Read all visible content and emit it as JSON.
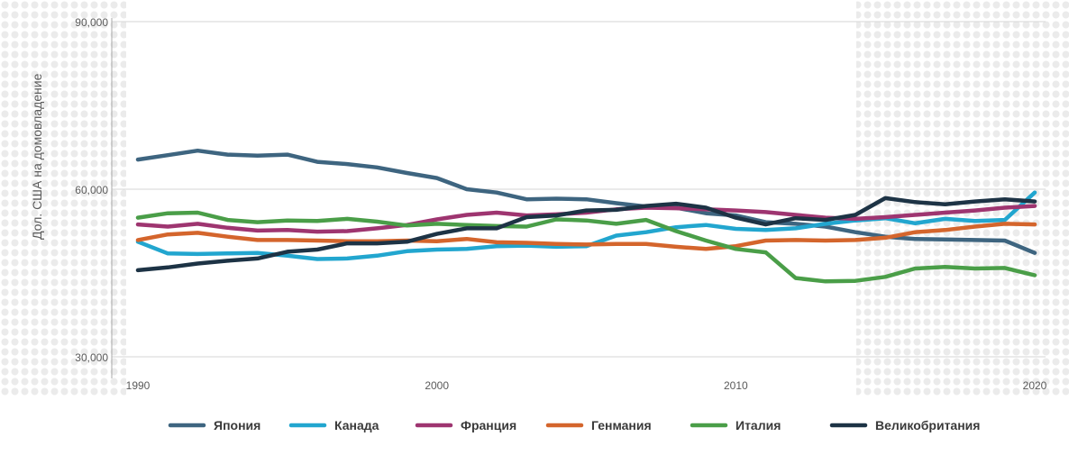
{
  "chart_data": {
    "type": "line",
    "ylabel": "Дол. США на домовладение",
    "ylim": [
      30000,
      90000
    ],
    "xlim": [
      1990,
      2020
    ],
    "y_ticks": [
      30000,
      60000,
      90000
    ],
    "y_tick_labels": [
      "30,000",
      "60,000",
      "90,000"
    ],
    "x_ticks": [
      1990,
      2000,
      2010,
      2020
    ],
    "x_tick_labels": [
      "1990",
      "2000",
      "2010",
      "2020"
    ],
    "grid": "horizontal",
    "legend_position": "bottom",
    "x": [
      1990,
      1991,
      1992,
      1993,
      1994,
      1995,
      1996,
      1997,
      1998,
      1999,
      2000,
      2001,
      2002,
      2003,
      2004,
      2005,
      2006,
      2007,
      2008,
      2009,
      2010,
      2011,
      2012,
      2013,
      2014,
      2015,
      2016,
      2017,
      2018,
      2019,
      2020
    ],
    "series": [
      {
        "name": "Япония",
        "color": "#3e6580",
        "values": [
          65300,
          66100,
          66900,
          66200,
          66000,
          66200,
          64900,
          64500,
          63900,
          62900,
          62000,
          60000,
          59400,
          58200,
          58300,
          58200,
          57500,
          56900,
          56700,
          55700,
          55300,
          54100,
          53800,
          53300,
          52300,
          51500,
          51100,
          51000,
          50900,
          50800,
          48600
        ]
      },
      {
        "name": "Канада",
        "color": "#22a6cf",
        "values": [
          50600,
          48500,
          48400,
          48500,
          48600,
          48100,
          47500,
          47600,
          48100,
          48900,
          49200,
          49300,
          49800,
          49900,
          49700,
          49800,
          51700,
          52300,
          53200,
          53600,
          52900,
          52700,
          53000,
          53800,
          54400,
          54800,
          53900,
          54700,
          54300,
          54500,
          59400
        ]
      },
      {
        "name": "Франция",
        "color": "#9e3570",
        "values": [
          53700,
          53300,
          53800,
          53100,
          52600,
          52700,
          52400,
          52500,
          53000,
          53600,
          54600,
          55400,
          55800,
          55300,
          55500,
          55800,
          56400,
          56700,
          56600,
          56400,
          56200,
          55900,
          55400,
          54900,
          54700,
          55000,
          55400,
          55800,
          56200,
          56700,
          57000
        ]
      },
      {
        "name": "Генмания",
        "color": "#d4652c",
        "values": [
          50900,
          51900,
          52200,
          51500,
          50900,
          50900,
          50800,
          50700,
          50700,
          50800,
          50700,
          51100,
          50500,
          50400,
          50200,
          50100,
          50200,
          50200,
          49700,
          49300,
          49800,
          50800,
          50900,
          50800,
          50900,
          51300,
          52300,
          52700,
          53300,
          53800,
          53700
        ]
      },
      {
        "name": "Италия",
        "color": "#4a9e48",
        "values": [
          54900,
          55700,
          55800,
          54500,
          54100,
          54400,
          54300,
          54700,
          54200,
          53500,
          53800,
          53600,
          53400,
          53300,
          54600,
          54400,
          53800,
          54500,
          52500,
          50800,
          49300,
          48700,
          44100,
          43500,
          43600,
          44300,
          45800,
          46100,
          45800,
          45900,
          44600
        ]
      },
      {
        "name": "Великобритания",
        "color": "#1d3345",
        "values": [
          45500,
          46000,
          46700,
          47200,
          47600,
          48800,
          49200,
          50300,
          50300,
          50600,
          52000,
          53000,
          53000,
          55000,
          55300,
          56200,
          56300,
          57000,
          57400,
          56700,
          54900,
          53700,
          54800,
          54500,
          55400,
          58400,
          57700,
          57300,
          57800,
          58200,
          57800
        ]
      }
    ]
  }
}
